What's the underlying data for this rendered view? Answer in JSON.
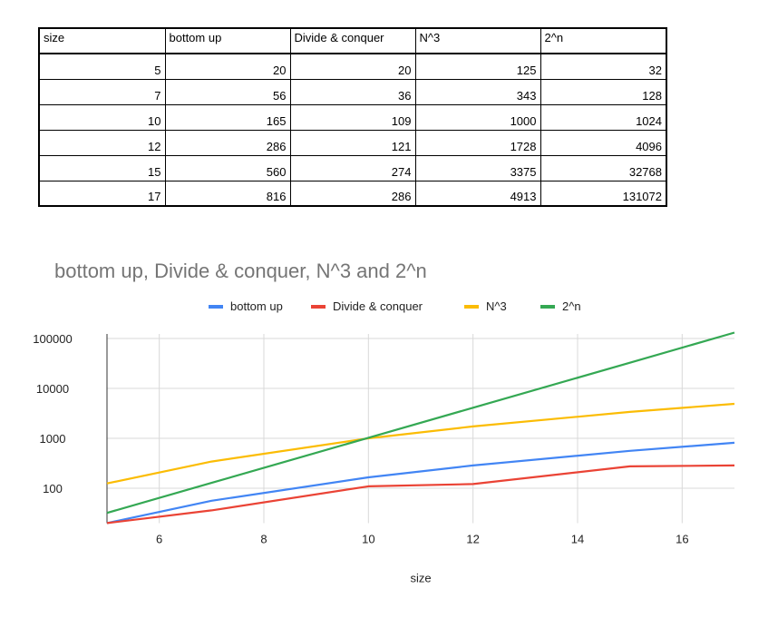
{
  "table": {
    "headers": [
      "size",
      "bottom up",
      "Divide & conquer",
      "N^3",
      "2^n"
    ],
    "rows": [
      [
        "5",
        "20",
        "20",
        "125",
        "32"
      ],
      [
        "7",
        "56",
        "36",
        "343",
        "128"
      ],
      [
        "10",
        "165",
        "109",
        "1000",
        "1024"
      ],
      [
        "12",
        "286",
        "121",
        "1728",
        "4096"
      ],
      [
        "15",
        "560",
        "274",
        "3375",
        "32768"
      ],
      [
        "17",
        "816",
        "286",
        "4913",
        "131072"
      ]
    ]
  },
  "chart_data": {
    "type": "line",
    "title": "bottom up, Divide & conquer, N^3 and 2^n",
    "xlabel": "size",
    "ylabel": "",
    "x": [
      5,
      7,
      10,
      12,
      15,
      17
    ],
    "xlim": [
      5,
      17
    ],
    "ylim": [
      20,
      130000
    ],
    "yscale": "log",
    "xticks": [
      "6",
      "8",
      "10",
      "12",
      "14",
      "16"
    ],
    "yticks": [
      "100",
      "1000",
      "10000",
      "100000"
    ],
    "grid": true,
    "legend": "top-center",
    "series": [
      {
        "name": "bottom up",
        "color": "#4285f4",
        "values": [
          20,
          56,
          165,
          286,
          560,
          816
        ]
      },
      {
        "name": "Divide & conquer",
        "color": "#ea4335",
        "values": [
          20,
          36,
          109,
          121,
          274,
          286
        ]
      },
      {
        "name": "N^3",
        "color": "#fbbc04",
        "values": [
          125,
          343,
          1000,
          1728,
          3375,
          4913
        ]
      },
      {
        "name": "2^n",
        "color": "#34a853",
        "values": [
          32,
          128,
          1024,
          4096,
          32768,
          131072
        ]
      }
    ]
  }
}
